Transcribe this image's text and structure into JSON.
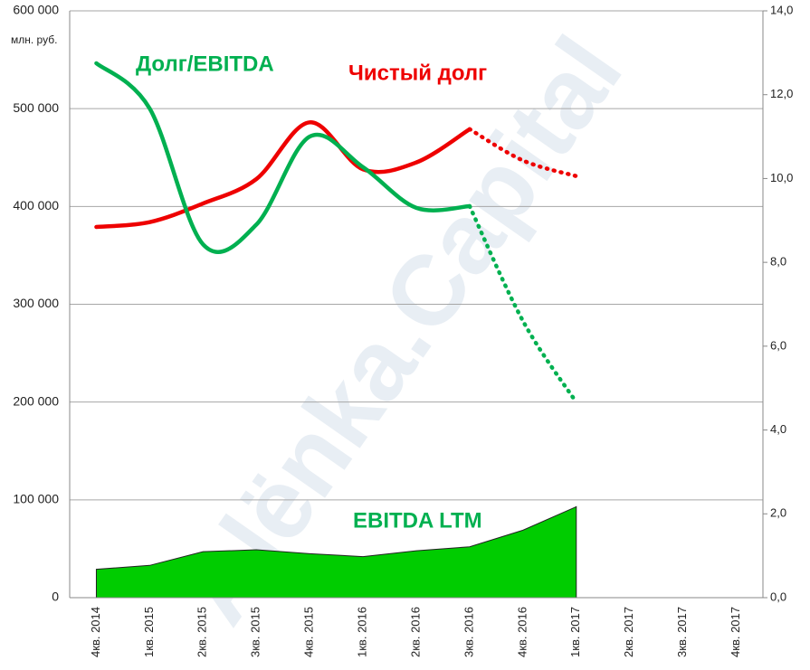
{
  "chart_data": {
    "type": "line",
    "unit_label": "млн. руб.",
    "watermark": "Alёnka.Capital",
    "categories": [
      "4кв. 2014",
      "1кв. 2015",
      "2кв. 2015",
      "3кв. 2015",
      "4кв. 2015",
      "1кв. 2016",
      "2кв. 2016",
      "3кв. 2016",
      "4кв. 2016",
      "1кв. 2017",
      "2кв. 2017",
      "3кв. 2017",
      "4кв. 2017"
    ],
    "series": [
      {
        "name": "EBITDA LTM",
        "kind": "area",
        "color": "#00cc00",
        "axis": "y",
        "values": [
          29000,
          33000,
          47000,
          49000,
          45000,
          42000,
          48000,
          52000,
          69000,
          93000,
          null,
          null,
          null
        ]
      },
      {
        "name": "Чистый долг",
        "kind": "line",
        "color": "#ee0000",
        "axis": "y",
        "dotted_from": 7,
        "values": [
          379000,
          384000,
          403000,
          428000,
          486000,
          438000,
          445000,
          479000,
          447000,
          431000,
          null,
          null,
          null
        ]
      },
      {
        "name": "Долг/EBITDA",
        "kind": "line",
        "color": "#00b050",
        "axis": "y2",
        "dotted_from": 7,
        "values": [
          12.75,
          11.67,
          8.43,
          8.9,
          11.0,
          10.27,
          9.3,
          9.34,
          6.6,
          4.66,
          null,
          null,
          null
        ]
      }
    ],
    "ylim": [
      0,
      600000
    ],
    "yticks": [
      0,
      {
        "value": 100000,
        "label": "100 000"
      },
      {
        "value": 200000,
        "label": "200 000"
      },
      {
        "value": 300000,
        "label": "300 000"
      },
      {
        "value": 400000,
        "label": "400 000"
      },
      {
        "value": 500000,
        "label": "500 000"
      },
      {
        "value": 600000,
        "label": "600 000"
      }
    ],
    "y2lim": [
      0,
      14
    ],
    "y2ticks": [
      {
        "value": 0,
        "label": "0,0"
      },
      {
        "value": 2,
        "label": "2,0"
      },
      {
        "value": 4,
        "label": "4,0"
      },
      {
        "value": 6,
        "label": "6,0"
      },
      {
        "value": 8,
        "label": "8,0"
      },
      {
        "value": 10,
        "label": "10,0"
      },
      {
        "value": 12,
        "label": "12,0"
      },
      {
        "value": 14,
        "label": "14,0"
      }
    ],
    "grid": true
  }
}
